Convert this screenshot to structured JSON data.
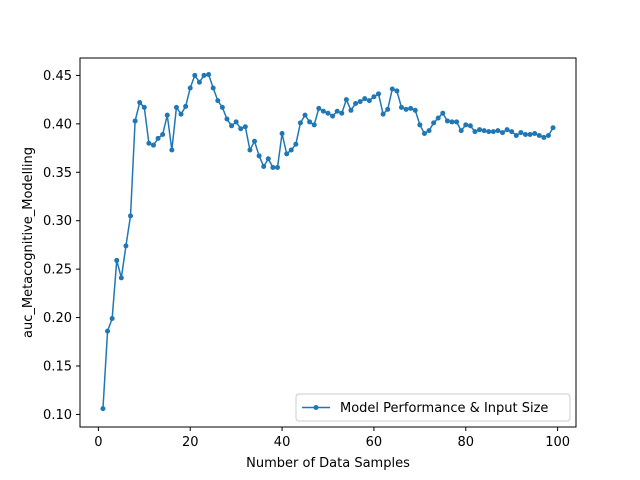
{
  "chart_data": {
    "type": "line",
    "title": "",
    "xlabel": "Number of Data Samples",
    "ylabel": "auc_Metacognitive_Modelling",
    "xlim": [
      -4,
      104
    ],
    "ylim": [
      0.087,
      0.468
    ],
    "xticks": [
      0,
      20,
      40,
      60,
      80,
      100
    ],
    "yticks": [
      0.1,
      0.15,
      0.2,
      0.25,
      0.3,
      0.35,
      0.4,
      0.45
    ],
    "grid": false,
    "legend": "lower-right",
    "series": [
      {
        "name": "Model Performance & Input Size",
        "color": "#1f77b4",
        "marker": "circle",
        "x": [
          1,
          2,
          3,
          4,
          5,
          6,
          7,
          8,
          9,
          10,
          11,
          12,
          13,
          14,
          15,
          16,
          17,
          18,
          19,
          20,
          21,
          22,
          23,
          24,
          25,
          26,
          27,
          28,
          29,
          30,
          31,
          32,
          33,
          34,
          35,
          36,
          37,
          38,
          39,
          40,
          41,
          42,
          43,
          44,
          45,
          46,
          47,
          48,
          49,
          50,
          51,
          52,
          53,
          54,
          55,
          56,
          57,
          58,
          59,
          60,
          61,
          62,
          63,
          64,
          65,
          66,
          67,
          68,
          69,
          70,
          71,
          72,
          73,
          74,
          75,
          76,
          77,
          78,
          79,
          80,
          81,
          82,
          83,
          84,
          85,
          86,
          87,
          88,
          89,
          90,
          91,
          92,
          93,
          94,
          95,
          96,
          97,
          98,
          99
        ],
        "y": [
          0.106,
          0.186,
          0.199,
          0.259,
          0.241,
          0.274,
          0.305,
          0.403,
          0.422,
          0.417,
          0.38,
          0.378,
          0.385,
          0.389,
          0.409,
          0.373,
          0.417,
          0.41,
          0.418,
          0.437,
          0.45,
          0.443,
          0.45,
          0.451,
          0.437,
          0.424,
          0.417,
          0.405,
          0.398,
          0.402,
          0.395,
          0.397,
          0.373,
          0.382,
          0.367,
          0.356,
          0.364,
          0.355,
          0.355,
          0.39,
          0.369,
          0.373,
          0.379,
          0.401,
          0.409,
          0.402,
          0.399,
          0.416,
          0.413,
          0.411,
          0.408,
          0.413,
          0.411,
          0.425,
          0.414,
          0.421,
          0.423,
          0.426,
          0.424,
          0.428,
          0.431,
          0.41,
          0.415,
          0.436,
          0.434,
          0.417,
          0.415,
          0.416,
          0.414,
          0.399,
          0.39,
          0.393,
          0.401,
          0.406,
          0.411,
          0.403,
          0.402,
          0.402,
          0.393,
          0.399,
          0.398,
          0.392,
          0.394,
          0.393,
          0.392,
          0.392,
          0.393,
          0.391,
          0.394,
          0.392,
          0.388,
          0.391,
          0.389,
          0.389,
          0.39,
          0.388,
          0.386,
          0.388,
          0.396
        ]
      }
    ]
  }
}
